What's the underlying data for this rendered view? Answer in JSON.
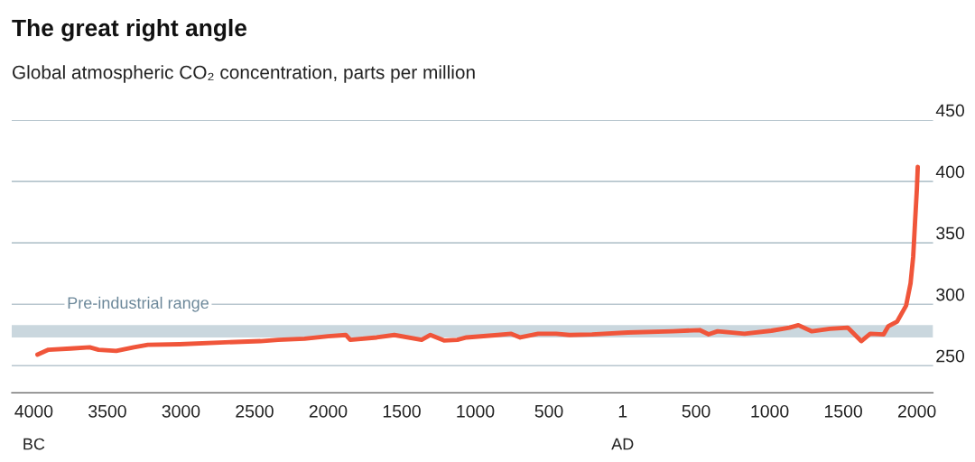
{
  "chart_data": {
    "type": "line",
    "title": "The great right angle",
    "subtitle": "Global atmospheric CO₂ concentration, parts per million",
    "x": [
      -3975,
      -3900,
      -3750,
      -3620,
      -3560,
      -3440,
      -3320,
      -3225,
      -3010,
      -2700,
      -2460,
      -2340,
      -2160,
      -2000,
      -1880,
      -1850,
      -1670,
      -1550,
      -1365,
      -1305,
      -1213,
      -1122,
      -1060,
      -848,
      -756,
      -695,
      -573,
      -451,
      -360,
      -207,
      37,
      341,
      524,
      585,
      646,
      829,
      1012,
      1134,
      1195,
      1287,
      1409,
      1530,
      1622,
      1683,
      1774,
      1805,
      1866,
      1927,
      1957,
      1975,
      1988,
      2000,
      2006
    ],
    "series": [
      {
        "color": "#f0553a",
        "values": [
          259,
          263,
          264,
          265,
          263,
          262,
          265,
          267,
          267.5,
          269,
          270,
          271,
          272,
          274,
          275,
          271,
          273,
          275,
          271,
          275,
          270.5,
          271,
          273,
          275,
          276,
          273,
          276,
          276,
          275,
          275.5,
          277,
          278,
          279,
          275.5,
          278,
          276,
          278.5,
          281,
          283,
          278,
          280,
          281,
          270,
          276,
          275.5,
          282,
          286,
          299,
          317,
          339,
          368,
          394,
          412
        ]
      }
    ],
    "xlim": [
      -4150,
      2110
    ],
    "ylim": [
      228,
      450
    ],
    "xticks": [
      {
        "value": -4000,
        "label": "4000"
      },
      {
        "value": -3500,
        "label": "3500"
      },
      {
        "value": -3000,
        "label": "3000"
      },
      {
        "value": -2500,
        "label": "2500"
      },
      {
        "value": -2000,
        "label": "2000"
      },
      {
        "value": -1500,
        "label": "1500"
      },
      {
        "value": -1000,
        "label": "1000"
      },
      {
        "value": -500,
        "label": "500"
      },
      1,
      500,
      1000,
      1500,
      2000
    ],
    "yticks": [
      250,
      300,
      350,
      400,
      450
    ],
    "grid": "y",
    "bands": [
      {
        "axis": "y",
        "from": 273,
        "to": 283,
        "label": "Pre-industrial range",
        "color": "#cad7de"
      }
    ],
    "annotations": [
      "BC",
      "AD"
    ]
  }
}
